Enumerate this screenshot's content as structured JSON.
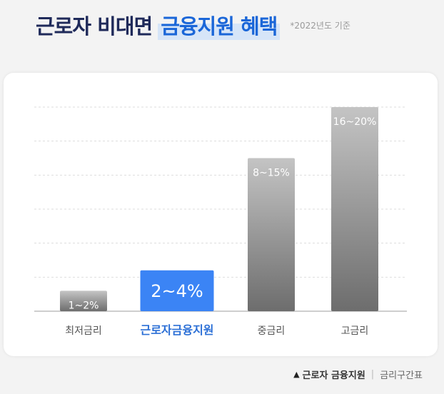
{
  "header": {
    "title": "근로자 비대면",
    "title_highlight": "금융지원 혜택",
    "note": "*2022년도 기준"
  },
  "chart_data": {
    "type": "bar",
    "categories": [
      "최저금리",
      "근로자금융지원",
      "중금리",
      "고금리"
    ],
    "values": [
      2,
      4,
      15,
      20
    ],
    "data_labels": [
      "1~2%",
      "2~4%",
      "8~15%",
      "16~20%"
    ],
    "highlight_index": 1,
    "ylim": [
      0,
      20
    ],
    "grid": true,
    "colors": {
      "highlight": "#3b84f5",
      "bar_top": "#c4c4c4",
      "bar_bottom": "#6d6d6d",
      "highlight_label": "#2b6fd6",
      "label": "#555555"
    }
  },
  "footer": {
    "arrow": "▲",
    "source": "근로자 금융지원",
    "separator": "|",
    "kind": "금리구간표"
  }
}
